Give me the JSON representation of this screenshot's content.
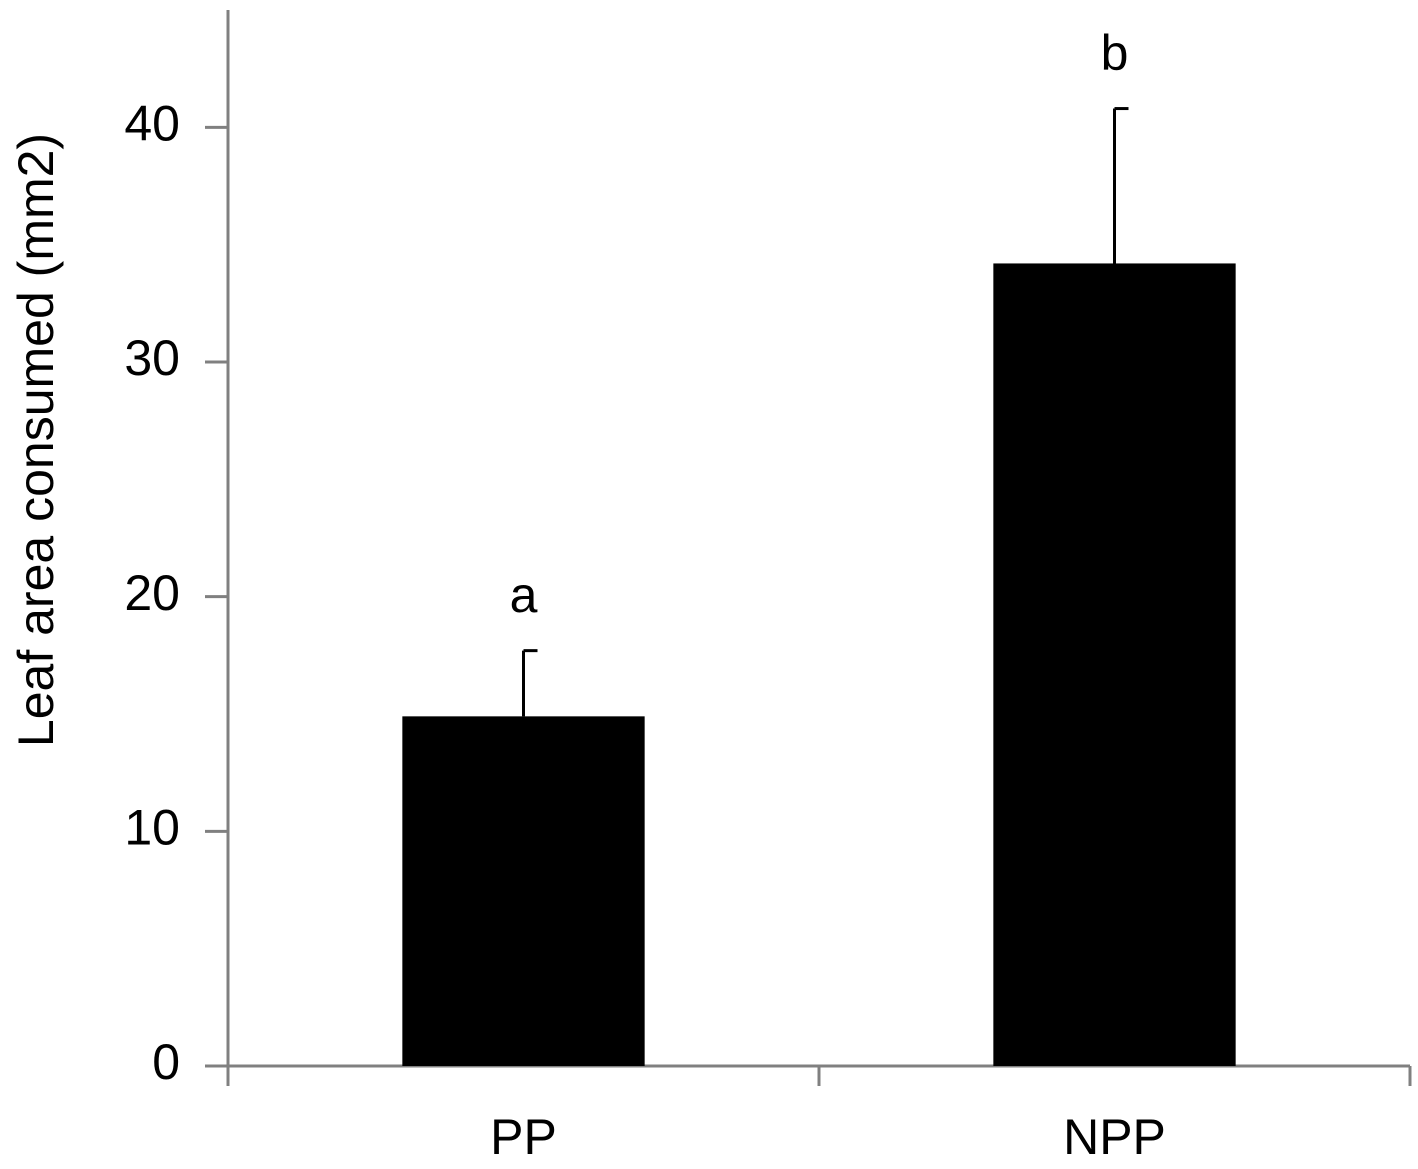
{
  "chart_data": {
    "type": "bar",
    "y_label": "Leaf area consumed (mm2)",
    "categories": [
      "PP",
      "NPP"
    ],
    "values": [
      14.9,
      34.2
    ],
    "errors": [
      2.8,
      6.6
    ],
    "significance_labels": [
      "a",
      "b"
    ],
    "color": "#000000",
    "ylim": [
      0,
      45
    ],
    "yticks": [
      0,
      10,
      20,
      30,
      40
    ],
    "grid": false
  }
}
